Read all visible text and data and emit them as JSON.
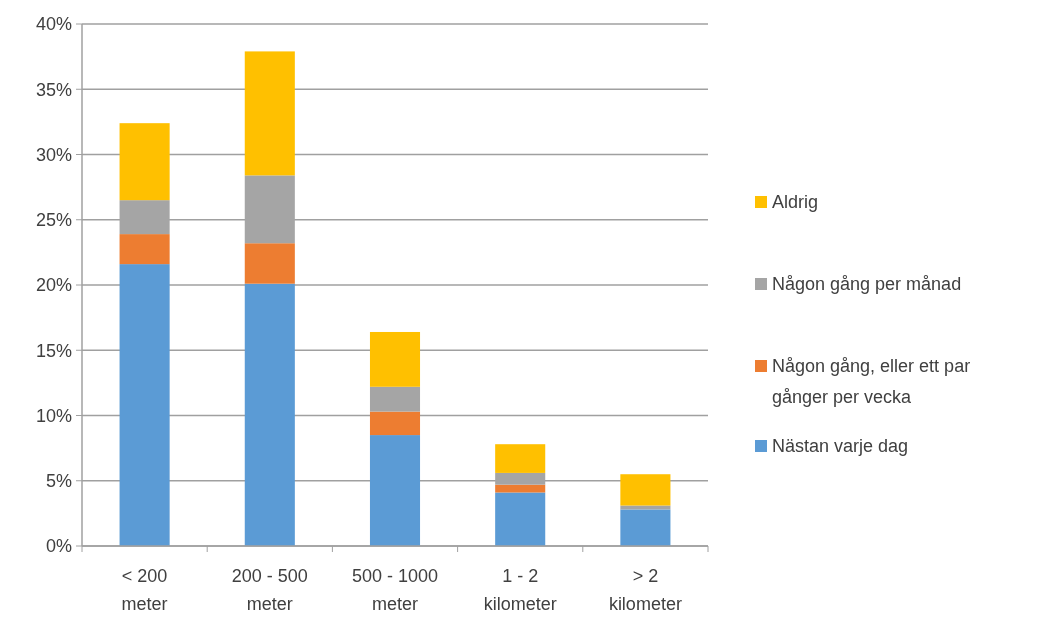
{
  "chart_data": {
    "type": "bar",
    "stacked": true,
    "categories": [
      "< 200\nmeter",
      "200 - 500\nmeter",
      "500 - 1000\nmeter",
      "1 - 2\nkilometer",
      "> 2\nkilometer"
    ],
    "series": [
      {
        "name": "Nästan varje dag",
        "color": "#5b9bd5",
        "values": [
          21.6,
          20.1,
          8.5,
          4.1,
          2.8
        ]
      },
      {
        "name": "Någon gång, eller ett par gånger per vecka",
        "color": "#ed7d31",
        "values": [
          2.3,
          3.1,
          1.8,
          0.6,
          0
        ]
      },
      {
        "name": "Någon gång per månad",
        "color": "#a5a5a5",
        "values": [
          2.6,
          5.2,
          1.9,
          0.9,
          0.3
        ]
      },
      {
        "name": "Aldrig",
        "color": "#ffc000",
        "values": [
          5.9,
          9.5,
          4.2,
          2.2,
          2.4
        ]
      }
    ],
    "ylim": [
      0,
      40
    ],
    "yticks": [
      {
        "value": 0,
        "label": "0%"
      },
      {
        "value": 5,
        "label": "5%"
      },
      {
        "value": 10,
        "label": "10%"
      },
      {
        "value": 15,
        "label": "15%"
      },
      {
        "value": 20,
        "label": "20%"
      },
      {
        "value": 25,
        "label": "25%"
      },
      {
        "value": 30,
        "label": "30%"
      },
      {
        "value": 35,
        "label": "35%"
      },
      {
        "value": 40,
        "label": "40%"
      }
    ],
    "grid": "y",
    "legend": "right"
  }
}
